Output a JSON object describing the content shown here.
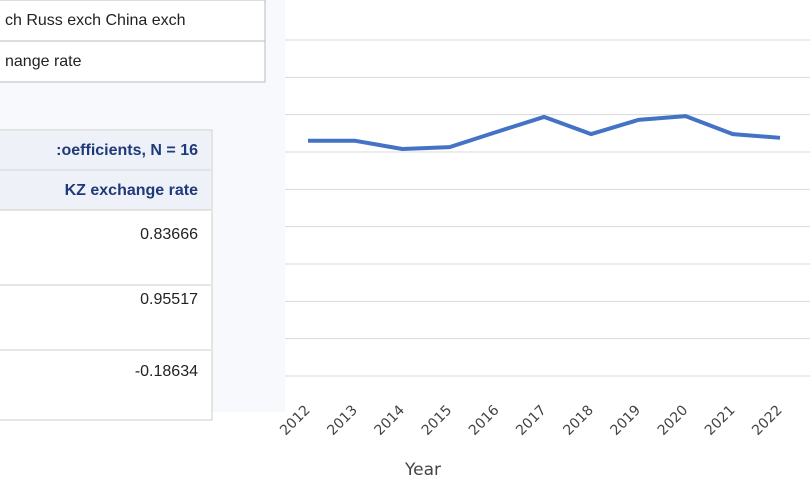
{
  "panel": {
    "top_rows": [
      "ch Russ exch China exch",
      "nange rate"
    ],
    "table": {
      "title": ":oefficients, N = 16",
      "column": "KZ exchange rate",
      "values": [
        "0.83666",
        "0.95517",
        "-0.18634"
      ]
    }
  },
  "chart_data": {
    "type": "line",
    "x_label": "Year",
    "categories": [
      "2012",
      "2013",
      "2014",
      "2015",
      "2016",
      "2017",
      "2018",
      "2019",
      "2020",
      "2021",
      "2022"
    ],
    "series": [
      {
        "name": "KZ exchange rate",
        "color": "#4472c4",
        "values": [
          6.3,
          6.3,
          6.08,
          6.13,
          6.54,
          6.94,
          6.48,
          6.86,
          6.96,
          6.48,
          6.38
        ]
      }
    ],
    "ylim": [
      0,
      9
    ],
    "yticks": [
      0,
      1,
      2,
      3,
      4,
      5,
      6,
      7,
      8,
      9
    ],
    "grid": true
  }
}
